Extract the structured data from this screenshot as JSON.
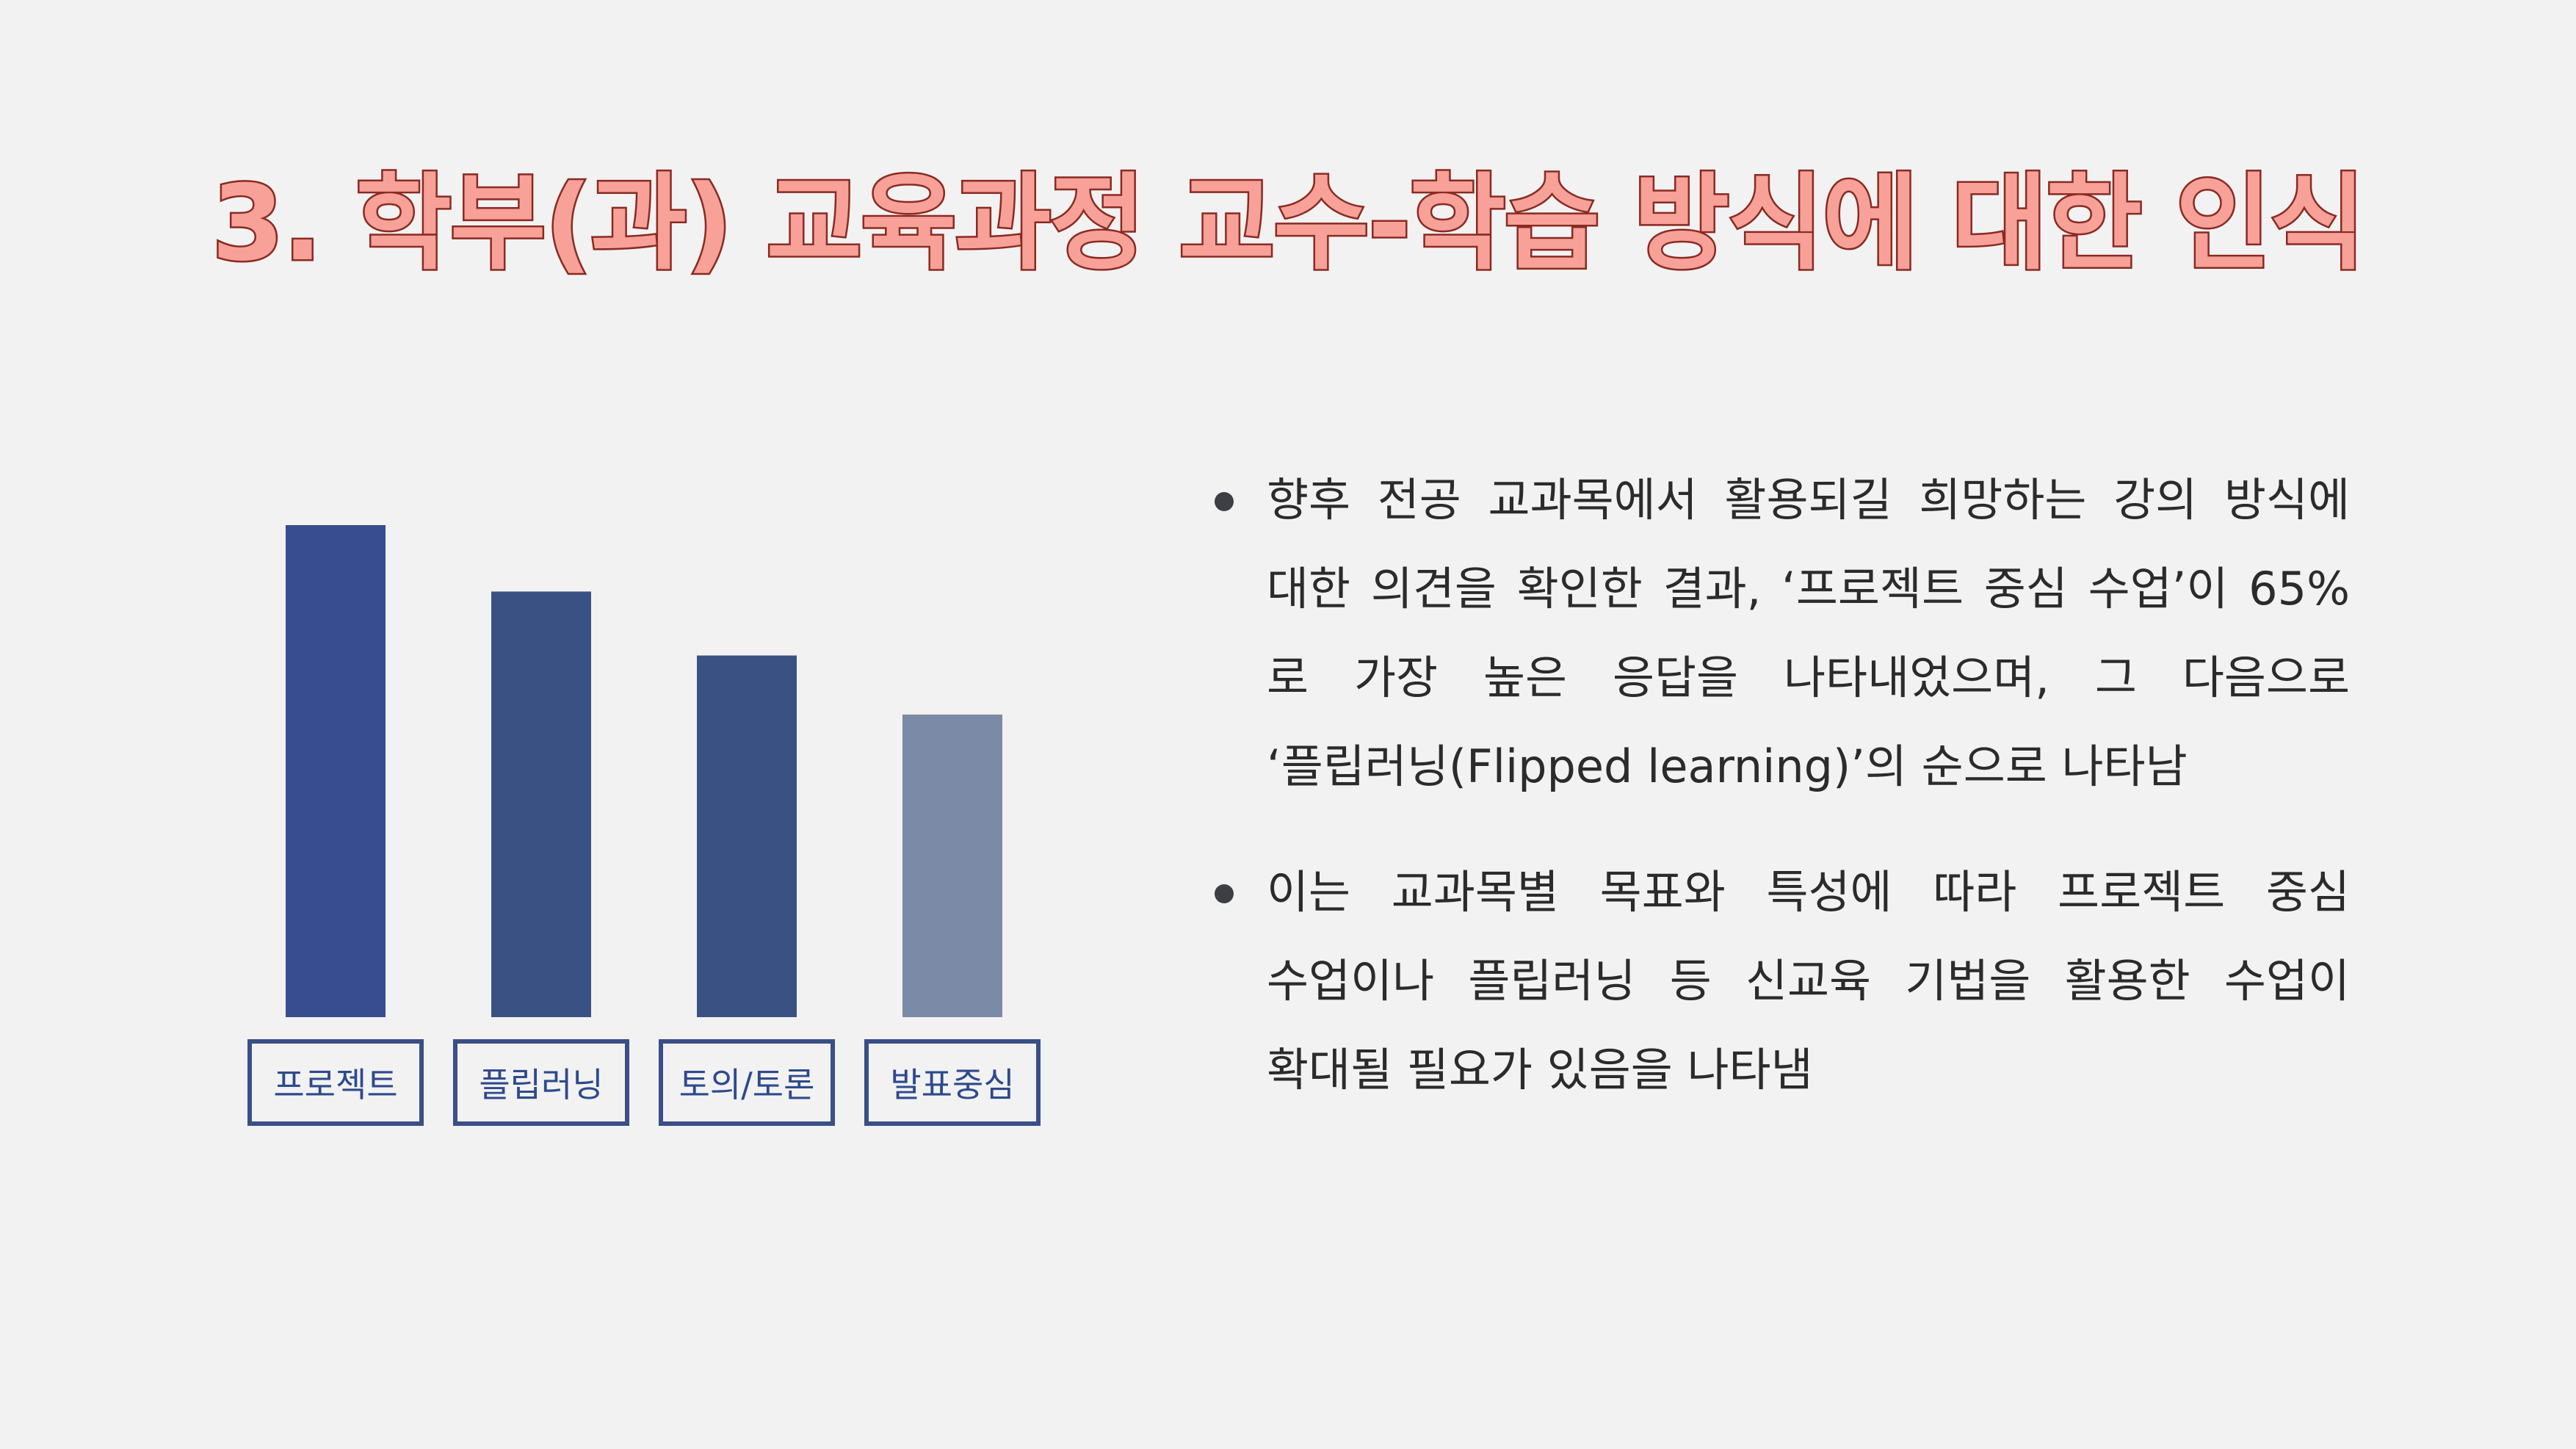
{
  "title": "3. 학부(과) 교육과정 교수-학습 방식에 대한 인식",
  "chart_data": {
    "type": "bar",
    "categories": [
      "프로젝트",
      "플립러닝",
      "토의/토론",
      "발표중심"
    ],
    "values": [
      100,
      86.5,
      73.5,
      61.5
    ],
    "ylim": [
      0,
      100
    ],
    "bar_colors": [
      "#374d8f",
      "#3a5283",
      "#3a5283",
      "#7b8aa6"
    ],
    "label_border_color": "#3a4f86",
    "label_text_color": "#2e4a8c"
  },
  "bullets": [
    "향후 전공 교과목에서 활용되길 희망하는 강의 방식에 대한 의견을 확인한 결과, ‘프로젝트 중심 수업’이 65%로 가장 높은 응답을 나타내었으며, 그 다음으로 ‘플립러닝(Flipped learning)’의 순으로 나타남",
    "이는 교과목별 목표와 특성에 따라 프로젝트 중심 수업이나 플립러닝 등 신교육 기법을 활용한 수업이 확대될 필요가 있음을 나타냄"
  ]
}
